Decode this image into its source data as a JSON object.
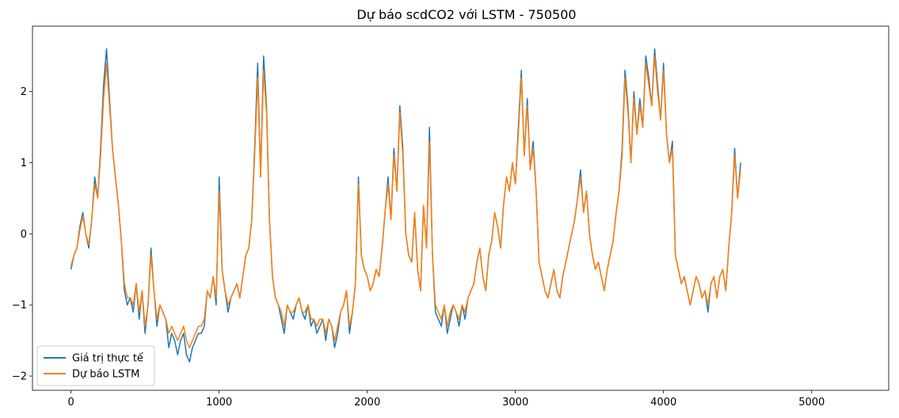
{
  "chart_data": {
    "type": "line",
    "title": "Dự báo scdCO2 với LSTM - 750500",
    "xlabel": "",
    "ylabel": "",
    "xlim": [
      -260,
      5520
    ],
    "ylim": [
      -2.2,
      2.92
    ],
    "x_ticks": [
      0,
      1000,
      2000,
      3000,
      4000,
      5000
    ],
    "x_tick_labels": [
      "0",
      "1000",
      "2000",
      "3000",
      "4000",
      "5000"
    ],
    "y_ticks": [
      -2,
      -1,
      0,
      1,
      2
    ],
    "y_tick_labels": [
      "−2",
      "−1",
      "0",
      "1",
      "2"
    ],
    "grid": false,
    "legend_position": "lower-left",
    "x_step": 20,
    "series": [
      {
        "name": "Giá trị thực tế",
        "color": "#1f77b4",
        "values": [
          -0.5,
          -0.3,
          -0.2,
          0.1,
          0.3,
          0.0,
          -0.2,
          0.2,
          0.8,
          0.5,
          1.2,
          2.1,
          2.6,
          1.9,
          1.2,
          0.8,
          0.4,
          -0.1,
          -0.8,
          -1.0,
          -0.9,
          -1.1,
          -0.7,
          -1.2,
          -0.8,
          -1.4,
          -1.0,
          -0.2,
          -0.8,
          -1.3,
          -1.0,
          -1.1,
          -1.2,
          -1.6,
          -1.4,
          -1.5,
          -1.7,
          -1.5,
          -1.4,
          -1.7,
          -1.8,
          -1.6,
          -1.5,
          -1.4,
          -1.4,
          -1.3,
          -0.8,
          -0.9,
          -0.6,
          -1.0,
          0.8,
          -0.5,
          -0.8,
          -1.1,
          -0.9,
          -0.8,
          -0.7,
          -0.9,
          -0.6,
          -0.3,
          -0.2,
          0.2,
          1.2,
          2.4,
          0.8,
          2.5,
          1.8,
          0.2,
          -0.6,
          -0.9,
          -1.0,
          -1.2,
          -1.4,
          -1.0,
          -1.1,
          -1.2,
          -1.0,
          -0.9,
          -1.1,
          -1.2,
          -1.0,
          -1.3,
          -1.2,
          -1.4,
          -1.3,
          -1.2,
          -1.5,
          -1.2,
          -1.3,
          -1.6,
          -1.4,
          -1.1,
          -1.0,
          -0.8,
          -1.4,
          -1.1,
          -0.7,
          0.8,
          -0.3,
          -0.5,
          -0.6,
          -0.8,
          -0.7,
          -0.5,
          -0.6,
          -0.2,
          0.3,
          0.8,
          0.2,
          1.2,
          0.6,
          1.8,
          1.2,
          0.0,
          -0.3,
          -0.4,
          0.3,
          -0.5,
          -0.8,
          0.4,
          -0.2,
          1.5,
          -0.3,
          -1.1,
          -1.2,
          -1.3,
          -1.0,
          -1.4,
          -1.2,
          -1.0,
          -1.1,
          -1.3,
          -1.0,
          -1.2,
          -0.9,
          -0.8,
          -0.7,
          -0.4,
          -0.2,
          -0.6,
          -0.8,
          -0.3,
          -0.1,
          0.3,
          0.1,
          -0.2,
          0.4,
          0.8,
          0.6,
          1.0,
          0.7,
          1.5,
          2.3,
          1.1,
          1.9,
          0.9,
          1.3,
          0.6,
          -0.4,
          -0.6,
          -0.8,
          -0.9,
          -0.7,
          -0.5,
          -0.8,
          -0.9,
          -0.6,
          -0.4,
          -0.2,
          0.0,
          0.2,
          0.5,
          0.9,
          0.3,
          0.6,
          0.0,
          -0.3,
          -0.5,
          -0.4,
          -0.6,
          -0.8,
          -0.5,
          -0.3,
          -0.1,
          0.3,
          0.6,
          1.2,
          2.3,
          1.8,
          1.0,
          2.0,
          1.4,
          1.9,
          1.5,
          2.5,
          2.2,
          1.8,
          2.6,
          2.1,
          1.6,
          2.4,
          1.4,
          1.0,
          1.3,
          -0.3,
          -0.5,
          -0.7,
          -0.6,
          -0.8,
          -1.0,
          -0.8,
          -0.6,
          -0.7,
          -0.9,
          -0.8,
          -1.1,
          -0.7,
          -0.6,
          -0.9,
          -0.6,
          -0.5,
          -0.8,
          -0.2,
          0.3,
          1.2,
          0.5,
          1.0
        ]
      },
      {
        "name": "Dự báo LSTM",
        "color": "#ff7f0e",
        "values": [
          -0.45,
          -0.3,
          -0.2,
          0.05,
          0.25,
          0.0,
          -0.15,
          0.2,
          0.7,
          0.5,
          1.1,
          1.9,
          2.4,
          1.8,
          1.2,
          0.8,
          0.4,
          -0.1,
          -0.7,
          -0.9,
          -0.9,
          -1.0,
          -0.7,
          -1.1,
          -0.8,
          -1.3,
          -1.0,
          -0.3,
          -0.8,
          -1.2,
          -1.0,
          -1.1,
          -1.2,
          -1.4,
          -1.3,
          -1.4,
          -1.5,
          -1.4,
          -1.3,
          -1.5,
          -1.6,
          -1.5,
          -1.4,
          -1.3,
          -1.3,
          -1.2,
          -0.8,
          -0.9,
          -0.6,
          -0.9,
          0.6,
          -0.5,
          -0.8,
          -1.0,
          -0.9,
          -0.8,
          -0.7,
          -0.9,
          -0.6,
          -0.3,
          -0.2,
          0.2,
          1.1,
          2.2,
          0.8,
          2.3,
          1.7,
          0.2,
          -0.6,
          -0.9,
          -1.0,
          -1.1,
          -1.3,
          -1.0,
          -1.1,
          -1.1,
          -1.0,
          -0.9,
          -1.1,
          -1.1,
          -1.0,
          -1.2,
          -1.2,
          -1.3,
          -1.2,
          -1.2,
          -1.4,
          -1.2,
          -1.3,
          -1.5,
          -1.3,
          -1.1,
          -1.0,
          -0.8,
          -1.3,
          -1.1,
          -0.7,
          0.7,
          -0.3,
          -0.5,
          -0.6,
          -0.8,
          -0.7,
          -0.5,
          -0.6,
          -0.2,
          0.3,
          0.7,
          0.2,
          1.1,
          0.6,
          1.7,
          1.1,
          0.0,
          -0.3,
          -0.4,
          0.3,
          -0.5,
          -0.8,
          0.4,
          -0.2,
          1.3,
          -0.3,
          -1.0,
          -1.1,
          -1.2,
          -1.0,
          -1.3,
          -1.1,
          -1.0,
          -1.1,
          -1.2,
          -1.0,
          -1.1,
          -0.9,
          -0.8,
          -0.7,
          -0.4,
          -0.2,
          -0.6,
          -0.8,
          -0.3,
          -0.1,
          0.3,
          0.1,
          -0.2,
          0.4,
          0.8,
          0.6,
          1.0,
          0.7,
          1.4,
          2.2,
          1.1,
          1.8,
          0.9,
          1.2,
          0.6,
          -0.4,
          -0.6,
          -0.8,
          -0.9,
          -0.7,
          -0.5,
          -0.8,
          -0.9,
          -0.6,
          -0.4,
          -0.2,
          0.0,
          0.2,
          0.5,
          0.8,
          0.3,
          0.6,
          0.0,
          -0.3,
          -0.5,
          -0.4,
          -0.6,
          -0.8,
          -0.5,
          -0.3,
          -0.1,
          0.3,
          0.6,
          1.1,
          2.2,
          1.7,
          1.0,
          1.9,
          1.4,
          1.8,
          1.5,
          2.4,
          2.1,
          1.8,
          2.5,
          2.0,
          1.6,
          2.3,
          1.4,
          1.0,
          1.2,
          -0.3,
          -0.5,
          -0.7,
          -0.6,
          -0.8,
          -1.0,
          -0.8,
          -0.6,
          -0.7,
          -0.9,
          -0.8,
          -1.0,
          -0.7,
          -0.6,
          -0.9,
          -0.6,
          -0.5,
          -0.8,
          -0.2,
          0.3,
          1.1,
          0.5,
          0.9
        ]
      }
    ]
  }
}
